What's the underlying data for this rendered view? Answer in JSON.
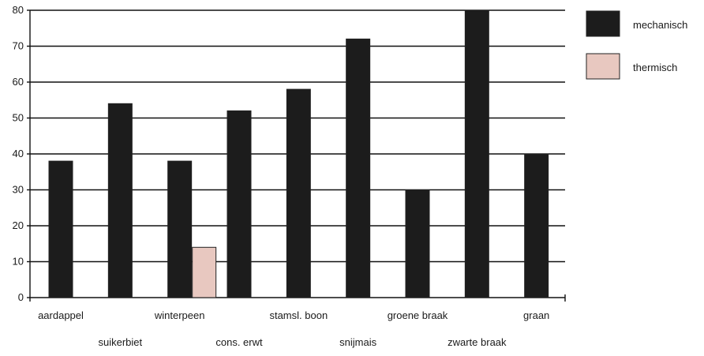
{
  "chart_data": {
    "type": "bar",
    "categories": [
      "aardappel",
      "suikerbiet",
      "winterpeen",
      "cons. erwt",
      "stamsl. boon",
      "snijmais",
      "groene braak",
      "zwarte braak",
      "graan"
    ],
    "series": [
      {
        "name": "mechanisch",
        "color": "#1c1c1c",
        "values": [
          38,
          54,
          38,
          52,
          58,
          72,
          30,
          80,
          40
        ]
      },
      {
        "name": "thermisch",
        "color": "#e8c8c0",
        "values": [
          null,
          null,
          14,
          null,
          null,
          null,
          null,
          null,
          null
        ]
      }
    ],
    "ylim": [
      0,
      80
    ],
    "yticks": [
      0,
      10,
      20,
      30,
      40,
      50,
      60,
      70,
      80
    ],
    "grid": true,
    "legend_position": "right"
  }
}
